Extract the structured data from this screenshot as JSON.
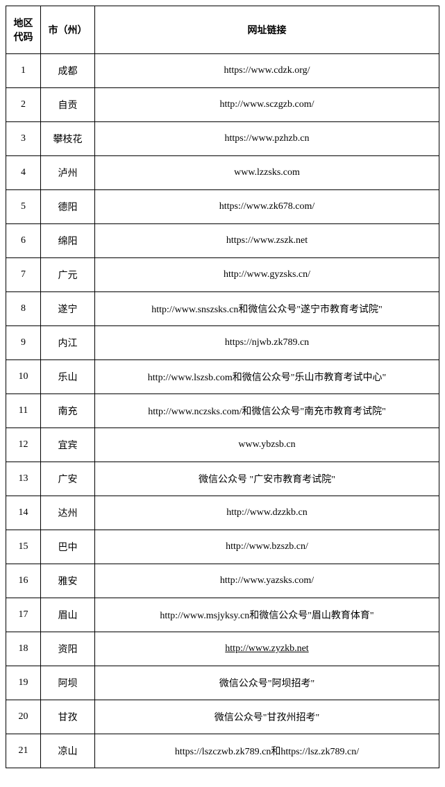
{
  "headers": {
    "code": "地区代码",
    "city": "市（州）",
    "url": "网址链接"
  },
  "rows": [
    {
      "code": "1",
      "city": "成都",
      "url": "https://www.cdzk.org/"
    },
    {
      "code": "2",
      "city": "自贡",
      "url": "http://www.sczgzb.com/"
    },
    {
      "code": "3",
      "city": "攀枝花",
      "url": "https://www.pzhzb.cn"
    },
    {
      "code": "4",
      "city": "泸州",
      "url": "www.lzzsks.com"
    },
    {
      "code": "5",
      "city": "德阳",
      "url": "https://www.zk678.com/"
    },
    {
      "code": "6",
      "city": "绵阳",
      "url": "https://www.zszk.net"
    },
    {
      "code": "7",
      "city": "广元",
      "url": "http://www.gyzsks.cn/"
    },
    {
      "code": "8",
      "city": "遂宁",
      "url": "http://www.snszsks.cn和微信公众号\"遂宁市教育考试院\""
    },
    {
      "code": "9",
      "city": "内江",
      "url": "https://njwb.zk789.cn"
    },
    {
      "code": "10",
      "city": "乐山",
      "url": "http://www.lszsb.com和微信公众号\"乐山市教育考试中心\""
    },
    {
      "code": "11",
      "city": "南充",
      "url": "http://www.nczsks.com/和微信公众号\"南充市教育考试院\""
    },
    {
      "code": "12",
      "city": "宜宾",
      "url": "www.ybzsb.cn"
    },
    {
      "code": "13",
      "city": "广安",
      "url": "微信公众号 \"广安市教育考试院\""
    },
    {
      "code": "14",
      "city": "达州",
      "url": "http://www.dzzkb.cn"
    },
    {
      "code": "15",
      "city": "巴中",
      "url": "http://www.bzszb.cn/"
    },
    {
      "code": "16",
      "city": "雅安",
      "url": "http://www.yazsks.com/"
    },
    {
      "code": "17",
      "city": "眉山",
      "url": "http://www.msjyksy.cn和微信公众号\"眉山教育体育\""
    },
    {
      "code": "18",
      "city": "资阳",
      "url": "http://www.zyzkb.net",
      "underline": true
    },
    {
      "code": "19",
      "city": "阿坝",
      "url": "微信公众号\"阿坝招考\""
    },
    {
      "code": "20",
      "city": "甘孜",
      "url": "微信公众号\"甘孜州招考\""
    },
    {
      "code": "21",
      "city": "凉山",
      "url": "https://lszczwb.zk789.cn和https://lsz.zk789.cn/"
    }
  ]
}
